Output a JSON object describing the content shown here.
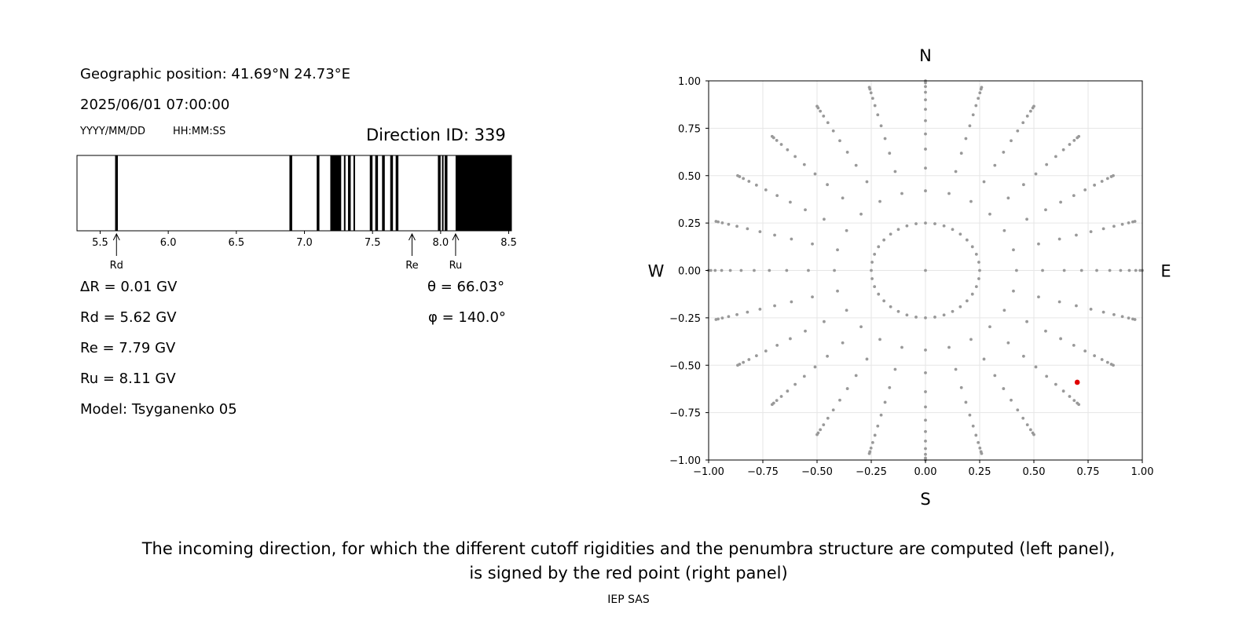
{
  "left_panel": {
    "geo_position": "Geographic position: 41.69°N 24.73°E",
    "datetime": "2025/06/01 07:00:00",
    "date_format": "YYYY/MM/DD",
    "time_format": "HH:MM:SS",
    "direction_id": "Direction ID: 339",
    "delta_r": "ΔR = 0.01 GV",
    "rd": "Rd = 5.62 GV",
    "re": "Re = 7.79 GV",
    "ru": "Ru = 8.11 GV",
    "model": "Model: Tsyganenko 05",
    "theta": "θ = 66.03°",
    "phi": "φ = 140.0°"
  },
  "chart_data": [
    {
      "type": "bar",
      "xlim": [
        5.33,
        8.52
      ],
      "xticks": [
        "5.5",
        "6.0",
        "6.5",
        "7.0",
        "7.5",
        "8.0",
        "8.5"
      ],
      "forbidden_bands": [
        [
          5.61,
          5.63
        ],
        [
          6.89,
          6.91
        ],
        [
          7.09,
          7.11
        ],
        [
          7.19,
          7.27
        ],
        [
          7.29,
          7.3
        ],
        [
          7.32,
          7.34
        ],
        [
          7.36,
          7.37
        ],
        [
          7.48,
          7.5
        ],
        [
          7.52,
          7.54
        ],
        [
          7.57,
          7.59
        ],
        [
          7.63,
          7.65
        ],
        [
          7.67,
          7.69
        ],
        [
          7.98,
          8.0
        ],
        [
          8.01,
          8.02
        ],
        [
          8.03,
          8.05
        ],
        [
          8.11,
          8.52
        ]
      ],
      "markers": [
        {
          "label": "Rd",
          "value": 5.62
        },
        {
          "label": "Re",
          "value": 7.79
        },
        {
          "label": "Ru",
          "value": 8.11
        }
      ]
    },
    {
      "type": "scatter",
      "xlim": [
        -1.0,
        1.0
      ],
      "ylim": [
        -1.0,
        1.0
      ],
      "xticks": [
        "−1.00",
        "−0.75",
        "−0.50",
        "−0.25",
        "0.00",
        "0.25",
        "0.50",
        "0.75",
        "1.00"
      ],
      "yticks": [
        "1.00",
        "0.75",
        "0.50",
        "0.25",
        "0.00",
        "−0.25",
        "−0.50",
        "−0.75",
        "−1.00"
      ],
      "grid": true,
      "compass": {
        "north": "N",
        "south": "S",
        "west": "W",
        "east": "E"
      },
      "grid_points": {
        "radii": [
          0.0,
          0.25,
          0.42,
          0.54,
          0.64,
          0.72,
          0.79,
          0.85,
          0.9,
          0.94,
          0.97,
          0.99,
          1.0
        ],
        "azimuth_counts": [
          1,
          36,
          24,
          24,
          24,
          24,
          24,
          24,
          24,
          24,
          24,
          24,
          24
        ],
        "color": "#999999"
      },
      "selected_point": {
        "x": 0.7,
        "y": -0.59,
        "color": "#e00000"
      }
    }
  ],
  "caption_line1": "The incoming direction, for which the different cutoff rigidities and the penumbra structure are computed (left panel),",
  "caption_line2": "is signed by the red point (right panel)",
  "footer": "IEP SAS"
}
